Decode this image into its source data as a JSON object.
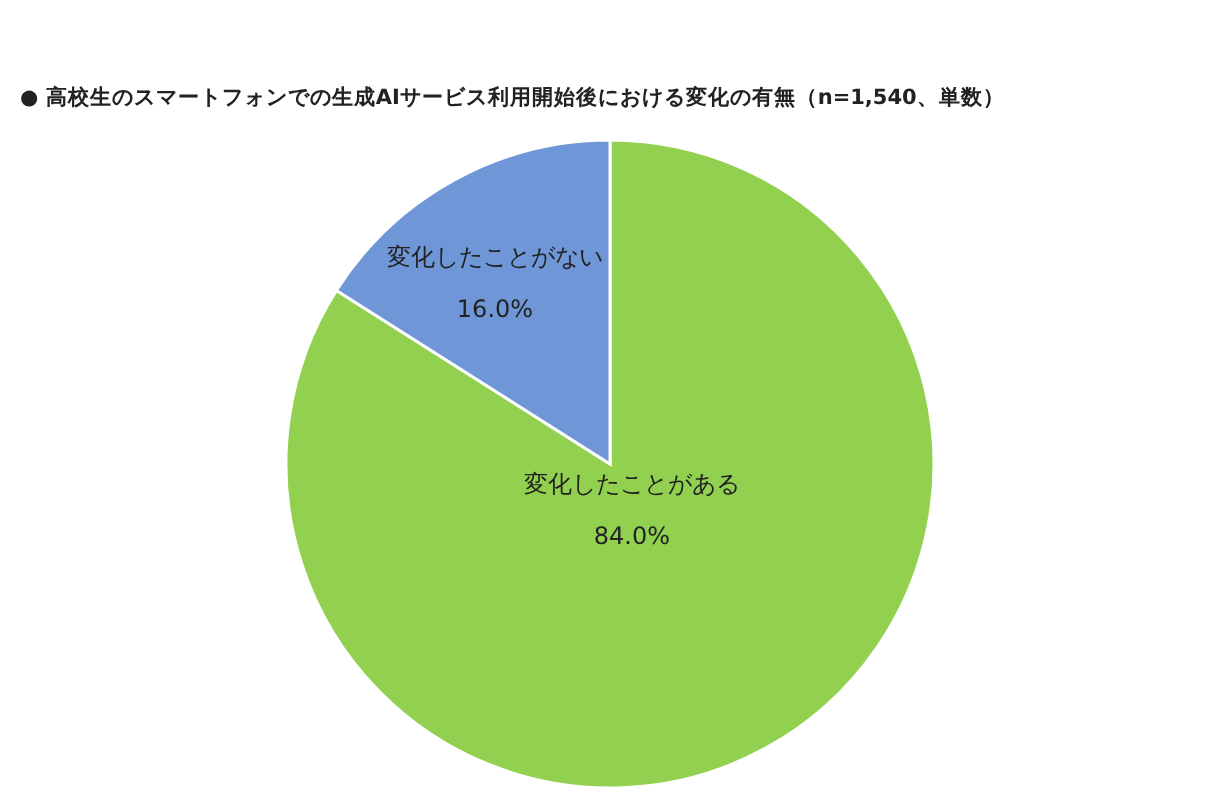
{
  "chart_data": {
    "type": "pie",
    "title": "● 高校生のスマートフォンでの生成AIサービス利用開始後における変化の有無（n=1,540、単数）",
    "categories": [
      "変化したことがある",
      "変化したことがない"
    ],
    "values": [
      84.0,
      16.0
    ],
    "value_labels": [
      "84.0%",
      "16.0%"
    ],
    "colors": [
      "#92d050",
      "#6f96d6"
    ]
  }
}
